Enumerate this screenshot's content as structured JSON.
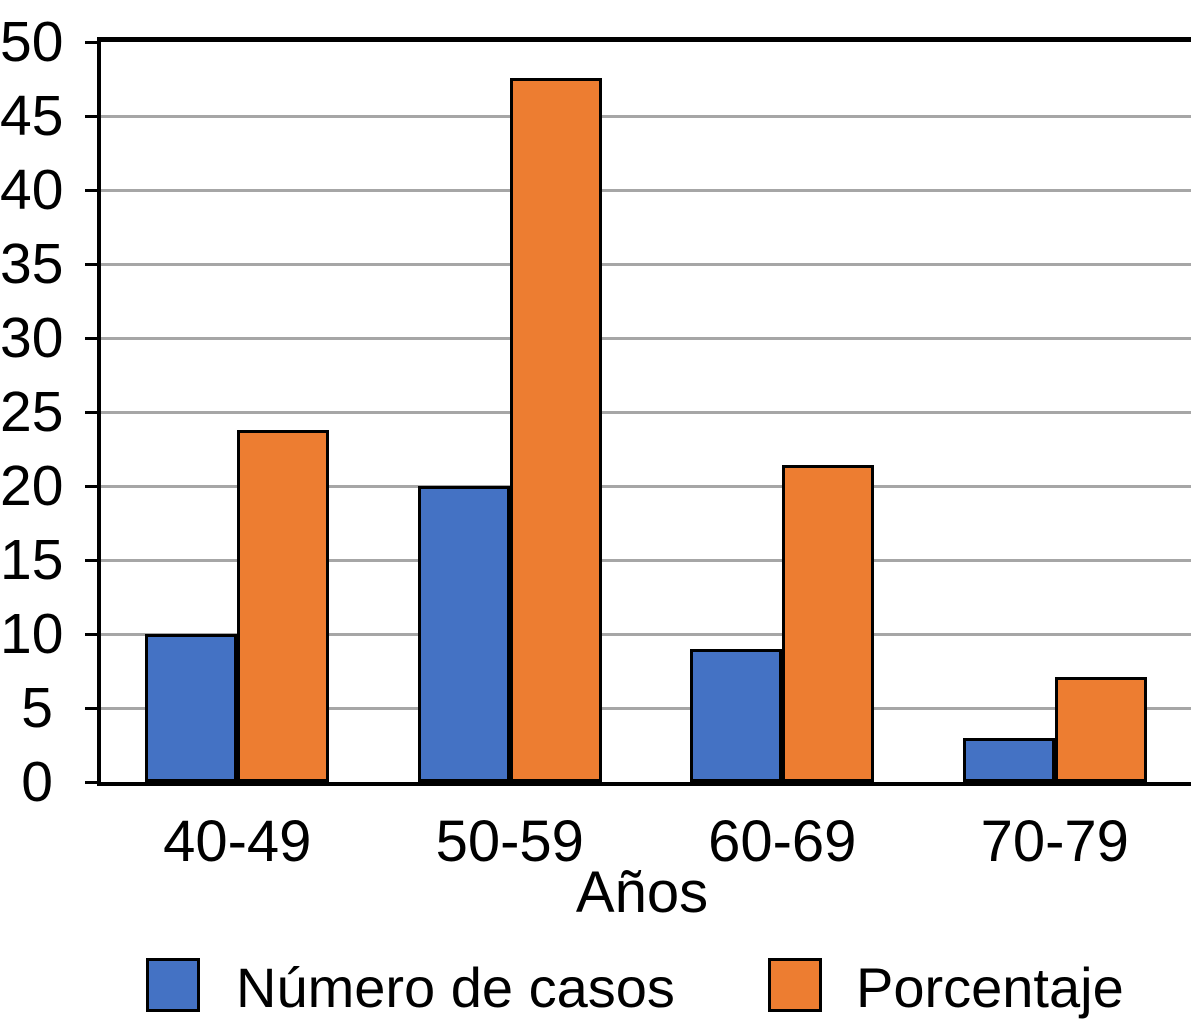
{
  "chart_data": {
    "type": "bar",
    "categories": [
      "40-49",
      "50-59",
      "60-69",
      "70-79"
    ],
    "series": [
      {
        "name": "Número de casos",
        "color": "#4472C4",
        "values": [
          10,
          20,
          9,
          3
        ]
      },
      {
        "name": "Porcentaje",
        "color": "#ED7D31",
        "values": [
          23.8,
          47.6,
          21.4,
          7.1
        ]
      }
    ],
    "title": "",
    "xlabel": "Años",
    "ylabel": "",
    "ylim": [
      0,
      50
    ],
    "ytick_step": 5,
    "yticks": [
      0,
      5,
      10,
      15,
      20,
      25,
      30,
      35,
      40,
      45,
      50
    ],
    "grid": "horizontal",
    "gridline_color": "#A6A6A6",
    "bar_outline_color": "#000000",
    "background_color": "#FFFFFF",
    "legend_position": "bottom"
  }
}
